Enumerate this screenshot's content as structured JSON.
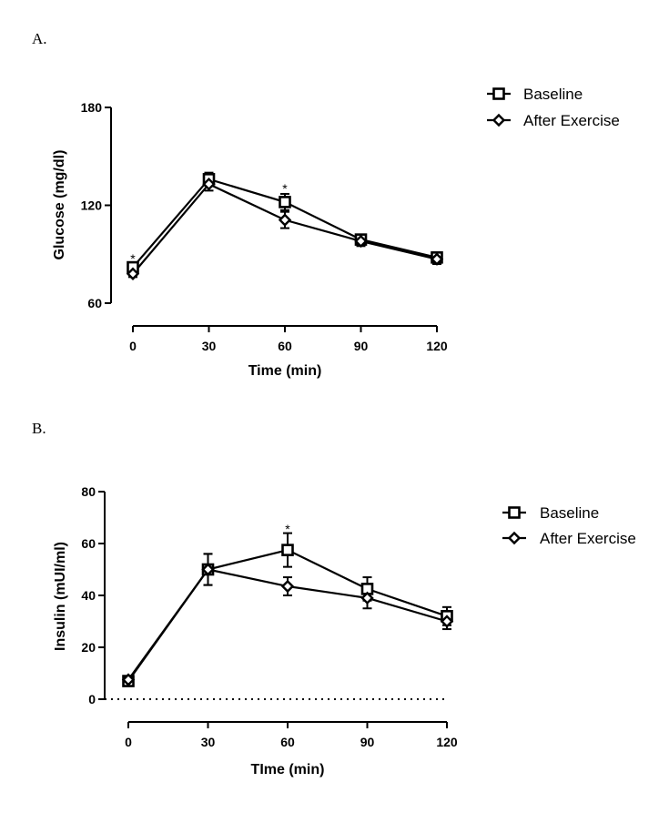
{
  "chart_data": [
    {
      "panel_label": "A.",
      "type": "line",
      "ylabel": "Glucose (mg/dl)",
      "xlabel": "Time (min)",
      "x": [
        0,
        30,
        60,
        90,
        120
      ],
      "xlim": [
        0,
        120
      ],
      "ylim": [
        60,
        180
      ],
      "xticks": [
        0,
        30,
        60,
        90,
        120
      ],
      "yticks": [
        60,
        120,
        180
      ],
      "grid": false,
      "legend_position": "top-right",
      "series": [
        {
          "name": "Baseline",
          "marker": "square",
          "values": [
            82,
            136,
            122,
            99,
            88
          ],
          "errors": [
            3,
            4,
            5,
            3,
            3
          ]
        },
        {
          "name": "After Exercise",
          "marker": "diamond",
          "values": [
            78,
            133,
            111,
            98,
            87
          ],
          "errors": [
            2,
            4,
            5,
            3,
            3
          ]
        }
      ],
      "annotations": [
        {
          "x": 0,
          "y": 88,
          "text": "*"
        },
        {
          "x": 60,
          "y": 131,
          "text": "*"
        }
      ]
    },
    {
      "panel_label": "B.",
      "type": "line",
      "ylabel": "Insulin (mUI/ml)",
      "xlabel": "TIme (min)",
      "x": [
        0,
        30,
        60,
        90,
        120
      ],
      "xlim": [
        0,
        120
      ],
      "ylim": [
        0,
        80
      ],
      "xticks": [
        0,
        30,
        60,
        90,
        120
      ],
      "yticks": [
        0,
        20,
        40,
        60,
        80
      ],
      "grid": false,
      "legend_position": "right",
      "reference_line": {
        "y": 0,
        "style": "dotted"
      },
      "series": [
        {
          "name": "Baseline",
          "marker": "square",
          "values": [
            7,
            50,
            57.5,
            42.5,
            32
          ],
          "errors": [
            1.5,
            6,
            6.5,
            4.5,
            3.5
          ]
        },
        {
          "name": "After Exercise",
          "marker": "diamond",
          "values": [
            7.5,
            50,
            43.5,
            39,
            30
          ],
          "errors": [
            1,
            6,
            3.5,
            4,
            3
          ]
        }
      ],
      "annotations": [
        {
          "x": 60,
          "y": 66,
          "text": "*"
        }
      ]
    }
  ]
}
